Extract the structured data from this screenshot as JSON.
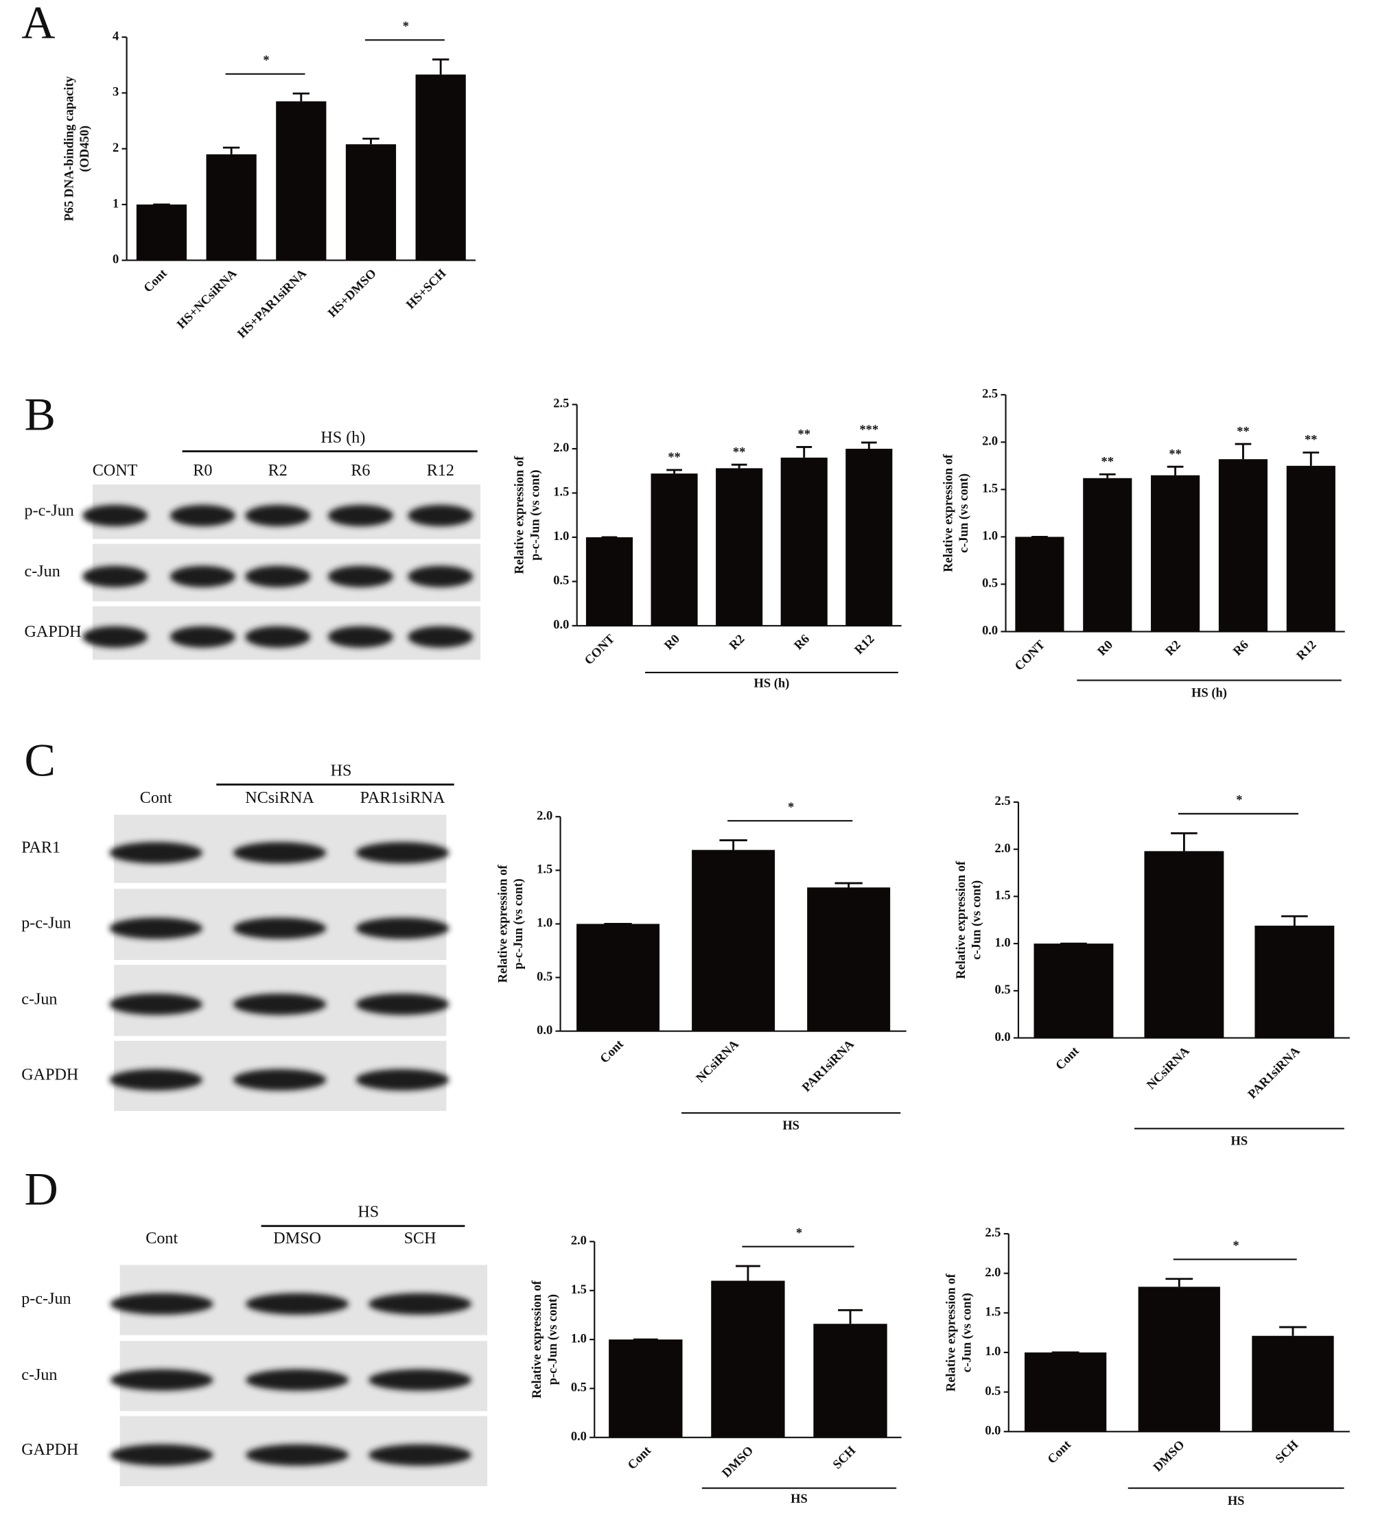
{
  "panel_labels": [
    "A",
    "B",
    "C",
    "D"
  ],
  "blots": [
    {
      "header": "HS (h)",
      "lanes": [
        "CONT",
        "R0",
        "R2",
        "R6",
        "R12"
      ],
      "rows": [
        "p-c-Jun",
        "c-Jun",
        "GAPDH"
      ]
    },
    {
      "header": "HS",
      "lanes": [
        "Cont",
        "NCsiRNA",
        "PAR1siRNA"
      ],
      "rows": [
        "PAR1",
        "p-c-Jun",
        "c-Jun",
        "GAPDH"
      ]
    },
    {
      "header": "HS",
      "lanes": [
        "Cont",
        "DMSO",
        "SCH"
      ],
      "rows": [
        "p-c-Jun",
        "c-Jun",
        "GAPDH"
      ]
    }
  ],
  "chart_data": [
    {
      "type": "bar",
      "y_label": [
        "P65 DNA-binding capacity",
        "(OD450)"
      ],
      "categories": [
        "Cont",
        "HS+NCsiRNA",
        "HS+PAR1siRNA",
        "HS+DMSO",
        "HS+SCH"
      ],
      "values": [
        1,
        1.9,
        2.85,
        2.08,
        3.33
      ],
      "errors": [
        0,
        0.12,
        0.14,
        0.1,
        0.27
      ],
      "color": "#0d0808",
      "ylim": [
        0,
        4
      ],
      "yticks": [
        0,
        1,
        2,
        3,
        4
      ],
      "comparisons": [
        {
          "between": [
            1,
            2
          ],
          "text": "*"
        },
        {
          "between": [
            3,
            4
          ],
          "text": "*"
        }
      ]
    },
    {
      "type": "bar",
      "y_label": [
        "Relative expression of",
        "p-c-Jun (vs cont)"
      ],
      "categories": [
        "CONT",
        "R0",
        "R2",
        "R6",
        "R12"
      ],
      "values": [
        1,
        1.72,
        1.78,
        1.9,
        2.0
      ],
      "errors": [
        0,
        0.04,
        0.04,
        0.12,
        0.07
      ],
      "bar_marks": [
        null,
        "**",
        "**",
        "**",
        "***"
      ],
      "color": "#0d0808",
      "ylim": [
        0,
        2.5
      ],
      "yticks": [
        {
          "value": 0,
          "label": "0.0"
        },
        0.5,
        {
          "value": 1,
          "label": "1.0"
        },
        1.5,
        {
          "value": 2,
          "label": "2.0"
        },
        2.5
      ],
      "group": {
        "label": "HS (h)",
        "span": [
          1,
          4
        ]
      }
    },
    {
      "type": "bar",
      "y_label": [
        "Relative expression of",
        "c-Jun (vs cont)"
      ],
      "categories": [
        "CONT",
        "R0",
        "R2",
        "R6",
        "R12"
      ],
      "values": [
        1,
        1.62,
        1.65,
        1.82,
        1.75
      ],
      "errors": [
        0,
        0.04,
        0.09,
        0.16,
        0.14
      ],
      "bar_marks": [
        null,
        "**",
        "**",
        "**",
        "**"
      ],
      "color": "#0d0808",
      "ylim": [
        0,
        2.5
      ],
      "yticks": [
        {
          "value": 0,
          "label": "0.0"
        },
        0.5,
        {
          "value": 1,
          "label": "1.0"
        },
        1.5,
        {
          "value": 2,
          "label": "2.0"
        },
        2.5
      ],
      "group": {
        "label": "HS (h)",
        "span": [
          1,
          4
        ]
      }
    },
    {
      "type": "bar",
      "y_label": [
        "Relative expression of",
        "p-c-Jun (vs cont)"
      ],
      "categories": [
        "Cont",
        "NCsiRNA",
        "PAR1siRNA"
      ],
      "values": [
        1,
        1.69,
        1.34
      ],
      "errors": [
        0,
        0.09,
        0.04
      ],
      "color": "#0d0808",
      "ylim": [
        0,
        2.0
      ],
      "yticks": [
        {
          "value": 0,
          "label": "0.0"
        },
        0.5,
        {
          "value": 1,
          "label": "1.0"
        },
        1.5,
        {
          "value": 2,
          "label": "2.0"
        }
      ],
      "comparisons": [
        {
          "between": [
            1,
            2
          ],
          "text": "*"
        }
      ],
      "group": {
        "label": "HS",
        "span": [
          1,
          2
        ]
      }
    },
    {
      "type": "bar",
      "y_label": [
        "Relative expression of",
        "c-Jun (vs cont)"
      ],
      "categories": [
        "Cont",
        "NCsiRNA",
        "PAR1siRNA"
      ],
      "values": [
        1,
        1.98,
        1.19
      ],
      "errors": [
        0,
        0.19,
        0.1
      ],
      "color": "#0d0808",
      "ylim": [
        0,
        2.5
      ],
      "yticks": [
        {
          "value": 0,
          "label": "0.0"
        },
        0.5,
        {
          "value": 1,
          "label": "1.0"
        },
        1.5,
        {
          "value": 2,
          "label": "2.0"
        },
        2.5
      ],
      "comparisons": [
        {
          "between": [
            1,
            2
          ],
          "text": "*"
        }
      ],
      "group": {
        "label": "HS",
        "span": [
          1,
          2
        ]
      }
    },
    {
      "type": "bar",
      "y_label": [
        "Relative expression of",
        "p-c-Jun (vs cont)"
      ],
      "categories": [
        "Cont",
        "DMSO",
        "SCH"
      ],
      "values": [
        1,
        1.6,
        1.16
      ],
      "errors": [
        0,
        0.15,
        0.14
      ],
      "color": "#0d0808",
      "ylim": [
        0,
        2.0
      ],
      "yticks": [
        {
          "value": 0,
          "label": "0.0"
        },
        0.5,
        {
          "value": 1,
          "label": "1.0"
        },
        1.5,
        {
          "value": 2,
          "label": "2.0"
        }
      ],
      "comparisons": [
        {
          "between": [
            1,
            2
          ],
          "text": "*"
        }
      ],
      "group": {
        "label": "HS",
        "span": [
          1,
          2
        ]
      }
    },
    {
      "type": "bar",
      "y_label": [
        "Relative expression of",
        "c-Jun (vs cont)"
      ],
      "categories": [
        "Cont",
        "DMSO",
        "SCH"
      ],
      "values": [
        1,
        1.83,
        1.21
      ],
      "errors": [
        0,
        0.1,
        0.11
      ],
      "color": "#0d0808",
      "ylim": [
        0,
        2.5
      ],
      "yticks": [
        {
          "value": 0,
          "label": "0.0"
        },
        0.5,
        {
          "value": 1,
          "label": "1.0"
        },
        1.5,
        {
          "value": 2,
          "label": "2.0"
        },
        2.5
      ],
      "comparisons": [
        {
          "between": [
            1,
            2
          ],
          "text": "*"
        }
      ],
      "group": {
        "label": "HS",
        "span": [
          1,
          2
        ]
      }
    }
  ]
}
